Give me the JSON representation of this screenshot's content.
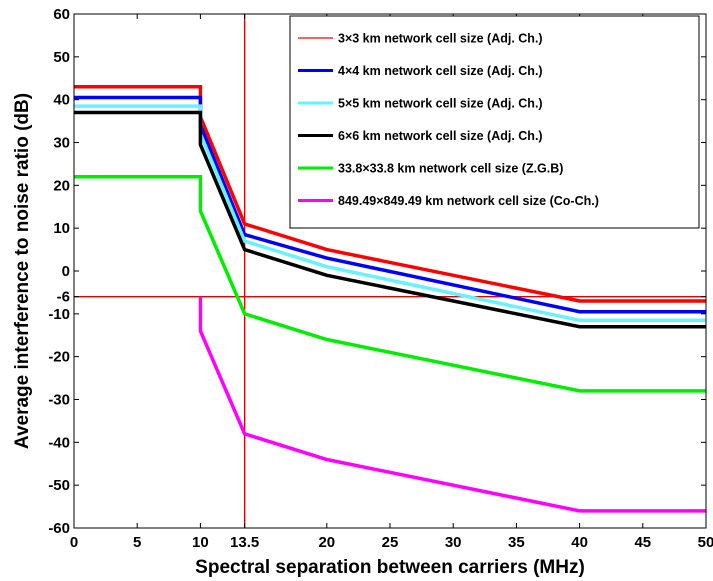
{
  "chart_data": {
    "type": "line",
    "xlabel": "Spectral separation between carriers (MHz)",
    "ylabel": "Average interference to noise ratio (dB)",
    "xlim": [
      0,
      50
    ],
    "ylim": [
      -60,
      60
    ],
    "x_ticks": [
      "0",
      "5",
      "10",
      "13.5",
      "20",
      "25",
      "30",
      "35",
      "40",
      "45",
      "50"
    ],
    "x_tick_values": [
      0,
      5,
      10,
      13.5,
      20,
      25,
      30,
      35,
      40,
      45,
      50
    ],
    "y_ticks": [
      "60",
      "50",
      "40",
      "30",
      "20",
      "10",
      "0",
      "-6",
      "-10",
      "-20",
      "-30",
      "-40",
      "-50",
      "-60"
    ],
    "y_tick_values": [
      60,
      50,
      40,
      30,
      20,
      10,
      0,
      -6,
      -10,
      -20,
      -30,
      -40,
      -50,
      -60
    ],
    "grid": false,
    "legend_position": "top-right",
    "reference_lines": {
      "vertical_x": 13.5,
      "horizontal_y": -6,
      "color": "#e60000"
    },
    "series": [
      {
        "name": "3×3 km network cell size (Adj. Ch.)",
        "color": "#ff0000",
        "legend_line_thin": true,
        "points": [
          [
            0,
            43
          ],
          [
            10,
            43
          ],
          [
            10,
            36
          ],
          [
            13.5,
            11
          ],
          [
            20,
            5
          ],
          [
            40,
            -7
          ],
          [
            50,
            -7
          ]
        ]
      },
      {
        "name": "4×4 km network cell size (Adj. Ch.)",
        "color": "#0000ff",
        "points": [
          [
            0,
            40.5
          ],
          [
            10,
            40.5
          ],
          [
            10,
            34
          ],
          [
            13.5,
            8.5
          ],
          [
            20,
            3
          ],
          [
            40,
            -9.5
          ],
          [
            50,
            -9.5
          ]
        ]
      },
      {
        "name": "5×5 km network cell size (Adj. Ch.)",
        "color": "#66f2ff",
        "points": [
          [
            0,
            38.5
          ],
          [
            10,
            38.5
          ],
          [
            10,
            32
          ],
          [
            13.5,
            7
          ],
          [
            20,
            1
          ],
          [
            40,
            -11.5
          ],
          [
            50,
            -11.5
          ]
        ]
      },
      {
        "name": "6×6 km network cell size (Adj. Ch.)",
        "color": "#000000",
        "points": [
          [
            0,
            37
          ],
          [
            10,
            37
          ],
          [
            10,
            29.5
          ],
          [
            13.5,
            5
          ],
          [
            20,
            -1
          ],
          [
            40,
            -13
          ],
          [
            50,
            -13
          ]
        ]
      },
      {
        "name": "33.8×33.8 km network cell size (Z.G.B)",
        "color": "#00ee00",
        "points": [
          [
            0,
            22
          ],
          [
            10,
            22
          ],
          [
            10,
            14
          ],
          [
            13.5,
            -10
          ],
          [
            20,
            -16
          ],
          [
            40,
            -28
          ],
          [
            50,
            -28
          ]
        ]
      },
      {
        "name": "849.49×849.49 km network cell size (Co-Ch.)",
        "color": "#ff00ff",
        "points": [
          [
            10,
            -6
          ],
          [
            10,
            -14
          ],
          [
            13.5,
            -38
          ],
          [
            20,
            -44
          ],
          [
            40,
            -56
          ],
          [
            50,
            -56
          ]
        ]
      }
    ]
  }
}
